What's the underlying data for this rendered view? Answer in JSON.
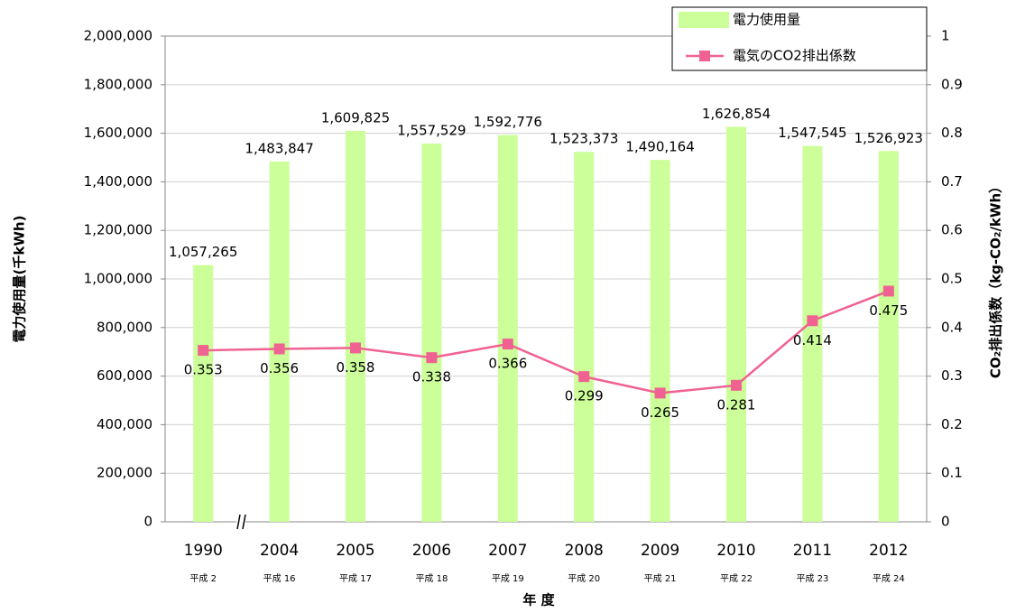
{
  "chart_data": {
    "type": "bar",
    "categories": [
      "1990",
      "2004",
      "2005",
      "2006",
      "2007",
      "2008",
      "2009",
      "2010",
      "2011",
      "2012"
    ],
    "category_sublabels": [
      "平成 2",
      "平成 16",
      "平成 17",
      "平成 18",
      "平成 19",
      "平成 20",
      "平成 21",
      "平成 22",
      "平成 23",
      "平成 24"
    ],
    "x_label": "年 度",
    "y_label": "電力使用量(千kWh)",
    "y2_label": "CO₂排出係数（kg-CO₂/kWh）",
    "ylim": [
      0,
      2000000
    ],
    "yticks": [
      {
        "value": 0,
        "label": "0"
      },
      {
        "value": 200000,
        "label": "200,000"
      },
      {
        "value": 400000,
        "label": "400,000"
      },
      {
        "value": 600000,
        "label": "600,000"
      },
      {
        "value": 800000,
        "label": "800,000"
      },
      {
        "value": 1000000,
        "label": "1,000,000"
      },
      {
        "value": 1200000,
        "label": "1,200,000"
      },
      {
        "value": 1400000,
        "label": "1,400,000"
      },
      {
        "value": 1600000,
        "label": "1,600,000"
      },
      {
        "value": 1800000,
        "label": "1,800,000"
      },
      {
        "value": 2000000,
        "label": "2,000,000"
      }
    ],
    "y2lim": [
      0,
      1
    ],
    "y2ticks": [
      0,
      0.1,
      0.2,
      0.3,
      0.4,
      0.5,
      0.6,
      0.7,
      0.8,
      0.9,
      1
    ],
    "grid": true,
    "legend": "top-right",
    "series": [
      {
        "name": "電力使用量",
        "type": "bar",
        "color": "#ccff99",
        "values": [
          1057265,
          1483847,
          1609825,
          1557529,
          1592776,
          1523373,
          1490164,
          1626854,
          1547545,
          1526923
        ],
        "value_labels": [
          "1,057,265",
          "1,483,847",
          "1,609,825",
          "1,557,529",
          "1,592,776",
          "1,523,373",
          "1,490,164",
          "1,626,854",
          "1,547,545",
          "1,526,923"
        ]
      },
      {
        "name": "電気のCO2排出係数",
        "type": "line",
        "axis": "y2",
        "color": "#f06292",
        "values": [
          0.353,
          0.356,
          0.358,
          0.338,
          0.366,
          0.299,
          0.265,
          0.281,
          0.414,
          0.475
        ]
      }
    ]
  }
}
